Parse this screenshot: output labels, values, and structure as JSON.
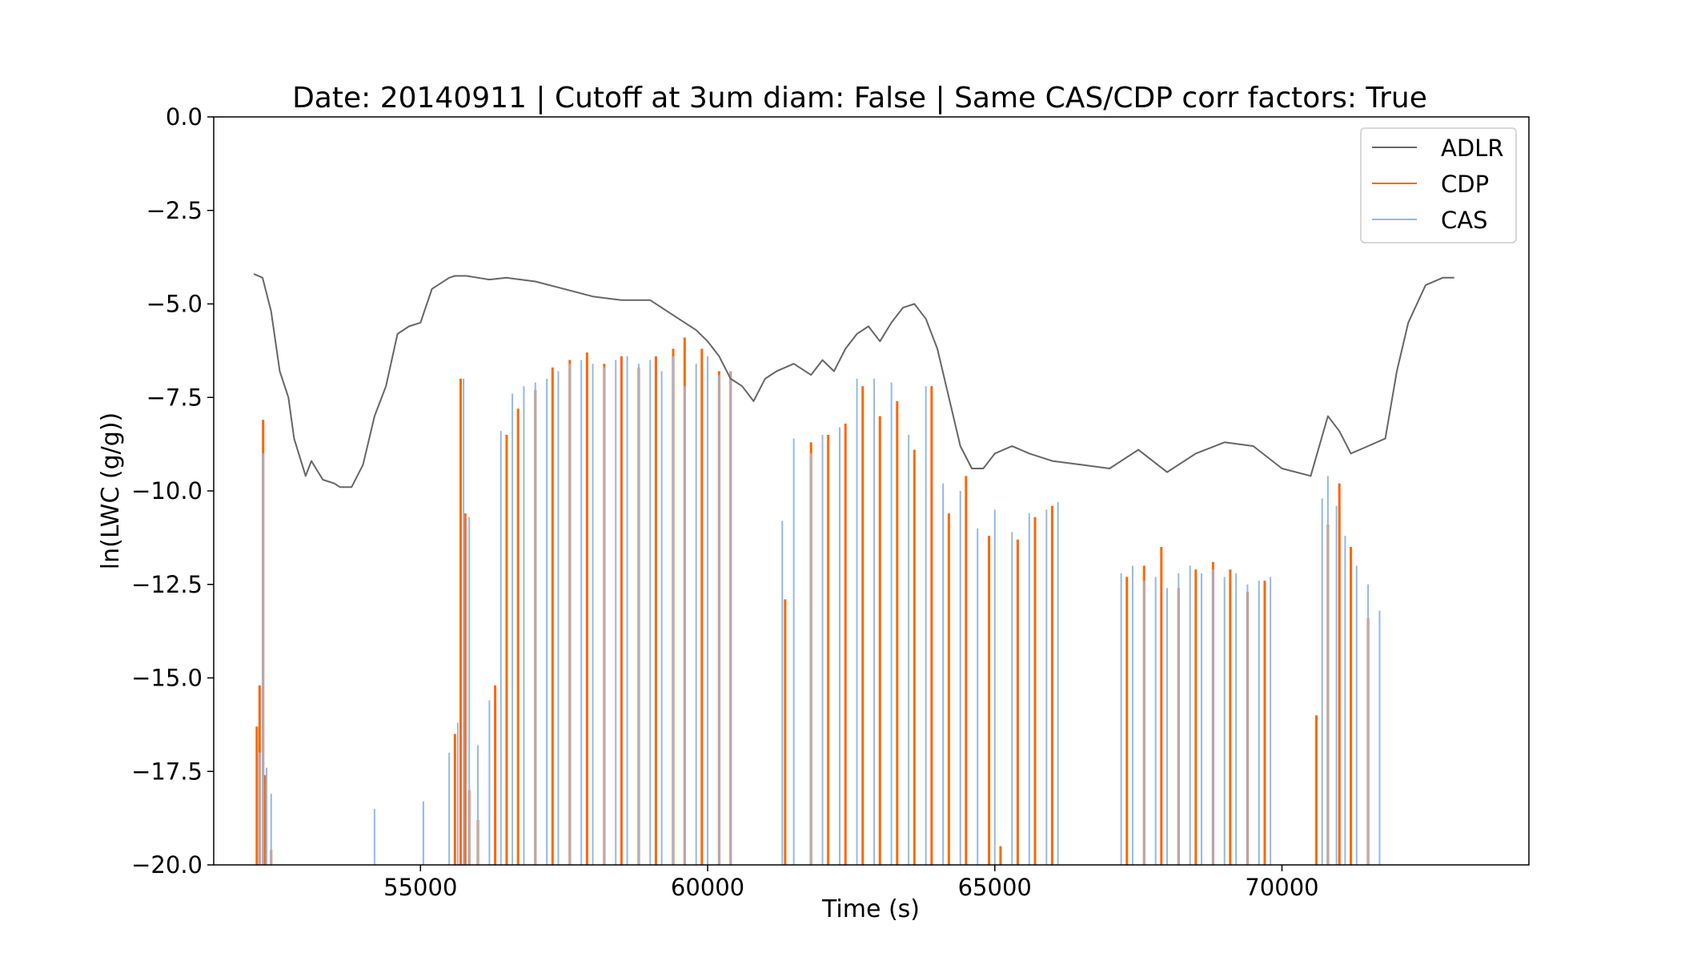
{
  "chart_data": {
    "type": "line",
    "title": "Date: 20140911 | Cutoff at 3um diam: False | Same CAS/CDP corr factors: True",
    "xlabel": "Time (s)",
    "ylabel": "ln(LWC (g/g))",
    "xlim": [
      51400,
      74300
    ],
    "ylim": [
      -20.0,
      0.0
    ],
    "xticks": [
      55000,
      60000,
      65000,
      70000
    ],
    "xtick_labels": [
      "55000",
      "60000",
      "65000",
      "70000"
    ],
    "yticks": [
      0.0,
      -2.5,
      -5.0,
      -7.5,
      -10.0,
      -12.5,
      -15.0,
      -17.5,
      -20.0
    ],
    "ytick_labels": [
      "0.0",
      "−2.5",
      "−5.0",
      "−7.5",
      "−10.0",
      "−12.5",
      "−15.0",
      "−17.5",
      "−20.0"
    ],
    "grid": false,
    "legend_position": "top-right",
    "series": [
      {
        "name": "ADLR",
        "color": "#666666",
        "x": [
          52100,
          52250,
          52400,
          52550,
          52700,
          52800,
          53000,
          53100,
          53300,
          53500,
          53600,
          53800,
          54000,
          54200,
          54400,
          54600,
          54800,
          55000,
          55200,
          55500,
          55600,
          55800,
          56000,
          56200,
          56500,
          57000,
          57500,
          58000,
          58500,
          59000,
          59500,
          59800,
          60000,
          60200,
          60400,
          60600,
          60800,
          61000,
          61200,
          61500,
          61800,
          62000,
          62200,
          62400,
          62600,
          62800,
          63000,
          63200,
          63400,
          63600,
          63800,
          64000,
          64200,
          64400,
          64600,
          64800,
          65000,
          65300,
          65600,
          66000,
          66500,
          67000,
          67500,
          68000,
          68500,
          69000,
          69500,
          70000,
          70500,
          70800,
          71000,
          71200,
          71500,
          71800,
          72000,
          72200,
          72500,
          72800,
          73000
        ],
        "y": [
          -4.2,
          -4.3,
          -5.2,
          -6.8,
          -7.5,
          -8.6,
          -9.6,
          -9.2,
          -9.7,
          -9.8,
          -9.9,
          -9.9,
          -9.3,
          -8.0,
          -7.2,
          -5.8,
          -5.6,
          -5.5,
          -4.6,
          -4.3,
          -4.25,
          -4.25,
          -4.3,
          -4.35,
          -4.3,
          -4.4,
          -4.6,
          -4.8,
          -4.9,
          -4.9,
          -5.4,
          -5.7,
          -6.0,
          -6.4,
          -7.0,
          -7.2,
          -7.6,
          -7.0,
          -6.8,
          -6.6,
          -6.9,
          -6.5,
          -6.8,
          -6.2,
          -5.8,
          -5.6,
          -6.0,
          -5.5,
          -5.1,
          -5.0,
          -5.4,
          -6.2,
          -7.5,
          -8.8,
          -9.4,
          -9.4,
          -9.0,
          -8.8,
          -9.0,
          -9.2,
          -9.3,
          -9.4,
          -8.9,
          -9.5,
          -9.0,
          -8.7,
          -8.8,
          -9.4,
          -9.6,
          -8.0,
          -8.4,
          -9.0,
          -8.8,
          -8.6,
          -6.8,
          -5.5,
          -4.5,
          -4.3,
          -4.3
        ]
      },
      {
        "name": "CDP",
        "color": "#ff6600",
        "x": [
          52150,
          52200,
          52260,
          52300,
          52400,
          55600,
          55700,
          55780,
          55850,
          56000,
          56300,
          56500,
          56700,
          57000,
          57300,
          57600,
          57900,
          58200,
          58500,
          58800,
          59100,
          59400,
          59600,
          59900,
          60200,
          60400,
          61350,
          61800,
          62100,
          62400,
          62700,
          63000,
          63300,
          63600,
          63900,
          64200,
          64500,
          64900,
          65100,
          65400,
          65700,
          66000,
          67300,
          67600,
          67900,
          68200,
          68500,
          68800,
          69100,
          69400,
          69700,
          70600,
          70800,
          71000,
          71200,
          71500
        ],
        "y": [
          -16.3,
          -15.2,
          -8.1,
          -17.6,
          -19.6,
          -16.5,
          -7.0,
          -10.6,
          -18.0,
          -18.8,
          -15.2,
          -8.5,
          -7.8,
          -7.3,
          -6.7,
          -6.5,
          -6.3,
          -6.6,
          -6.4,
          -6.7,
          -6.4,
          -6.2,
          -5.9,
          -6.2,
          -6.8,
          -6.8,
          -12.9,
          -8.7,
          -8.5,
          -8.2,
          -7.2,
          -8.0,
          -7.6,
          -8.9,
          -7.2,
          -10.6,
          -9.6,
          -11.2,
          -19.5,
          -11.3,
          -10.7,
          -10.4,
          -12.3,
          -12.0,
          -11.5,
          -12.6,
          -12.1,
          -11.9,
          -12.1,
          -12.7,
          -12.4,
          -16.0,
          -10.9,
          -9.8,
          -11.5,
          -13.4
        ]
      },
      {
        "name": "CAS",
        "color": "#94b8e8",
        "x": [
          52150,
          52200,
          52260,
          52320,
          52400,
          52500,
          54200,
          55050,
          55500,
          55650,
          55750,
          55850,
          56000,
          56200,
          56400,
          56600,
          56800,
          57000,
          57200,
          57400,
          57600,
          57800,
          58000,
          58200,
          58400,
          58600,
          58800,
          59000,
          59200,
          59400,
          59600,
          59800,
          60000,
          60200,
          60400,
          61300,
          61500,
          61800,
          62000,
          62300,
          62600,
          62900,
          63200,
          63500,
          63800,
          64100,
          64400,
          64700,
          65000,
          65300,
          65600,
          65900,
          66100,
          67200,
          67400,
          67600,
          67800,
          68000,
          68200,
          68400,
          68600,
          68800,
          69000,
          69200,
          69400,
          69600,
          69800,
          70700,
          70800,
          70950,
          71100,
          71300,
          71500,
          71700
        ],
        "y": [
          -20.0,
          -17.0,
          -9.0,
          -17.4,
          -18.1,
          -20.0,
          -18.5,
          -18.3,
          -17.0,
          -16.2,
          -7.0,
          -10.7,
          -16.8,
          -15.6,
          -8.4,
          -7.4,
          -7.2,
          -7.1,
          -7.0,
          -6.8,
          -6.6,
          -6.5,
          -6.6,
          -6.7,
          -6.5,
          -6.4,
          -6.6,
          -6.5,
          -6.8,
          -6.4,
          -7.2,
          -6.6,
          -6.4,
          -6.9,
          -6.8,
          -10.8,
          -8.6,
          -9.0,
          -8.5,
          -8.3,
          -7.0,
          -7.0,
          -7.1,
          -8.5,
          -7.2,
          -9.8,
          -10.0,
          -11.0,
          -10.5,
          -11.1,
          -10.6,
          -10.5,
          -10.3,
          -12.2,
          -12.0,
          -12.4,
          -12.3,
          -12.6,
          -12.2,
          -12.0,
          -12.2,
          -12.1,
          -12.3,
          -12.2,
          -12.5,
          -12.4,
          -12.3,
          -10.2,
          -9.6,
          -10.4,
          -11.2,
          -12.0,
          -12.5,
          -13.2
        ]
      }
    ]
  }
}
